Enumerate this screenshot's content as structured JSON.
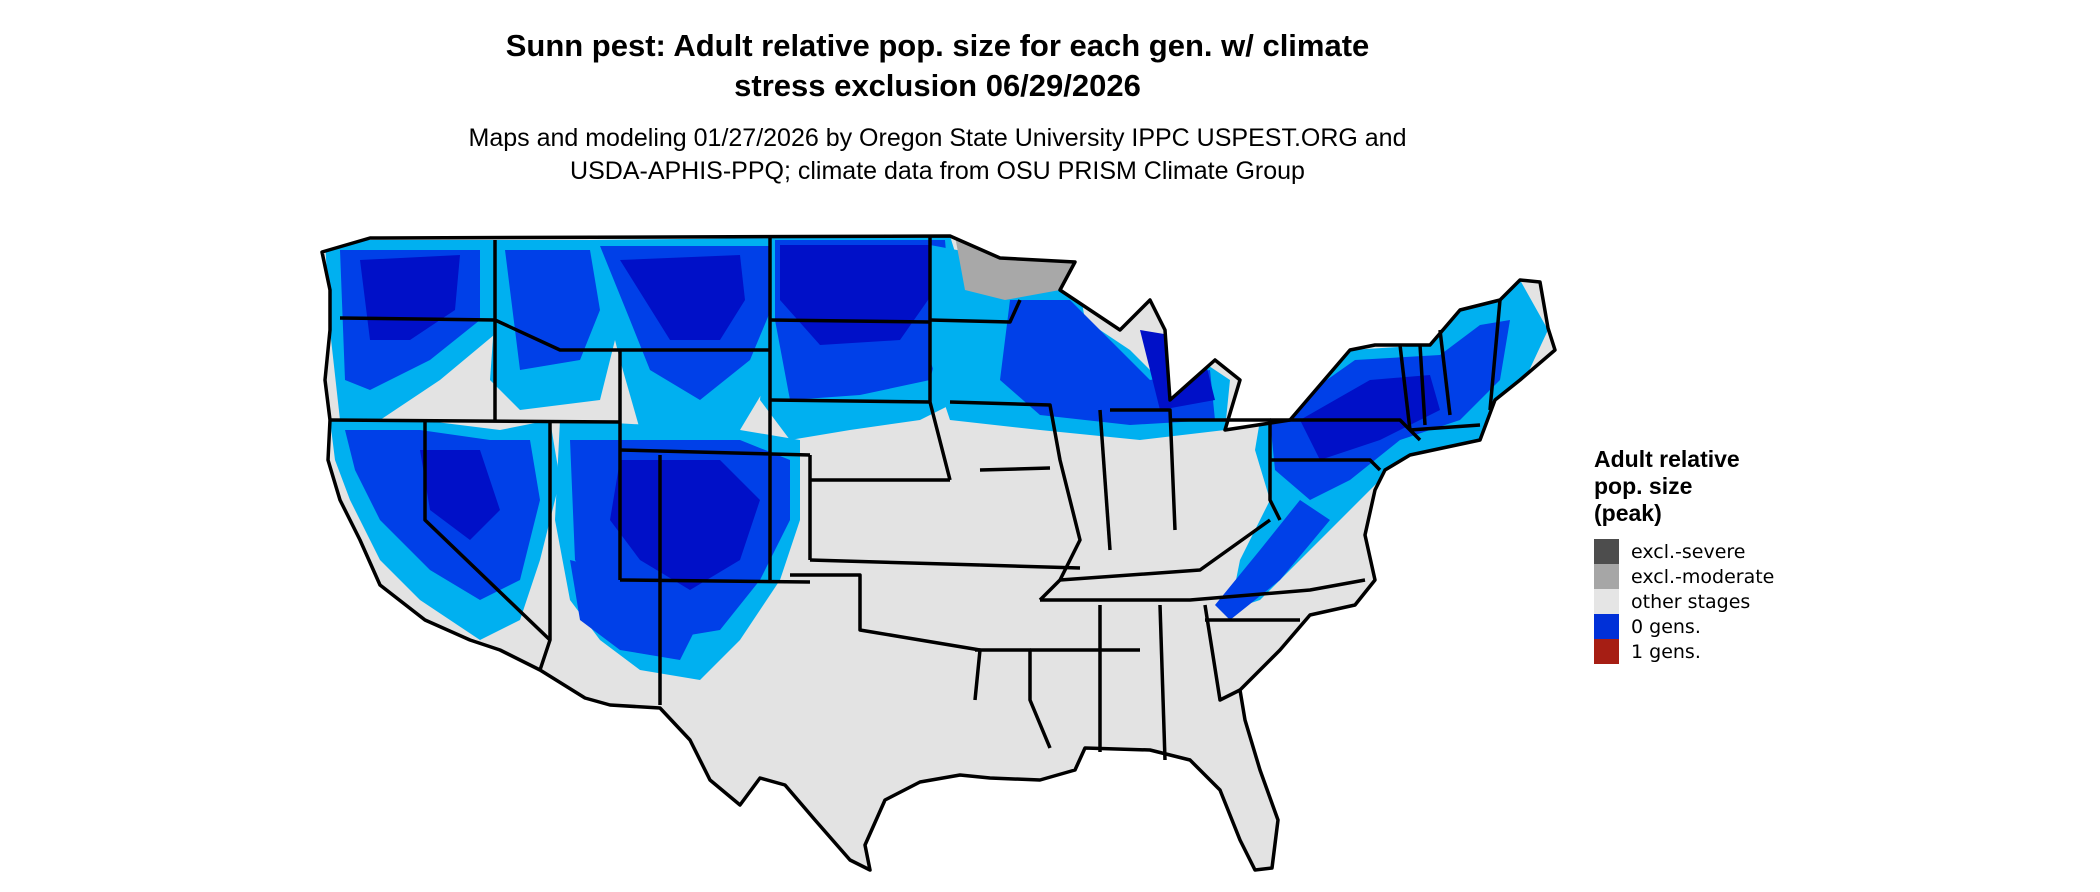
{
  "map": {
    "title_lines": [
      "Sunn pest: Adult relative pop. size for each gen. w/ climate",
      "stress exclusion 06/29/2026"
    ],
    "subtitle_lines": [
      "Maps and modeling 01/27/2026 by Oregon State University IPPC USPEST.ORG and",
      "USDA-APHIS-PPQ; climate data from OSU PRISM Climate Group"
    ],
    "region": "Contiguous United States",
    "colors": {
      "land": "#e3e3e3",
      "border": "#000000",
      "zero_gens_dark": "#0010c8",
      "zero_gens_mid": "#0040e8",
      "zero_gens_light": "#00b0f0",
      "excl_moderate": "#a8a8a8"
    }
  },
  "legend": {
    "title_lines": [
      "Adult relative",
      "pop. size",
      "(peak)"
    ],
    "items": [
      {
        "label": "excl.-severe",
        "color": "#4d4d4d"
      },
      {
        "label": "excl.-moderate",
        "color": "#a6a6a6"
      },
      {
        "label": "other stages",
        "color": "#e5e5e5"
      },
      {
        "label": "0 gens.",
        "color": "#0030d8"
      },
      {
        "label": "1 gens.",
        "color": "#a61e14"
      }
    ]
  }
}
